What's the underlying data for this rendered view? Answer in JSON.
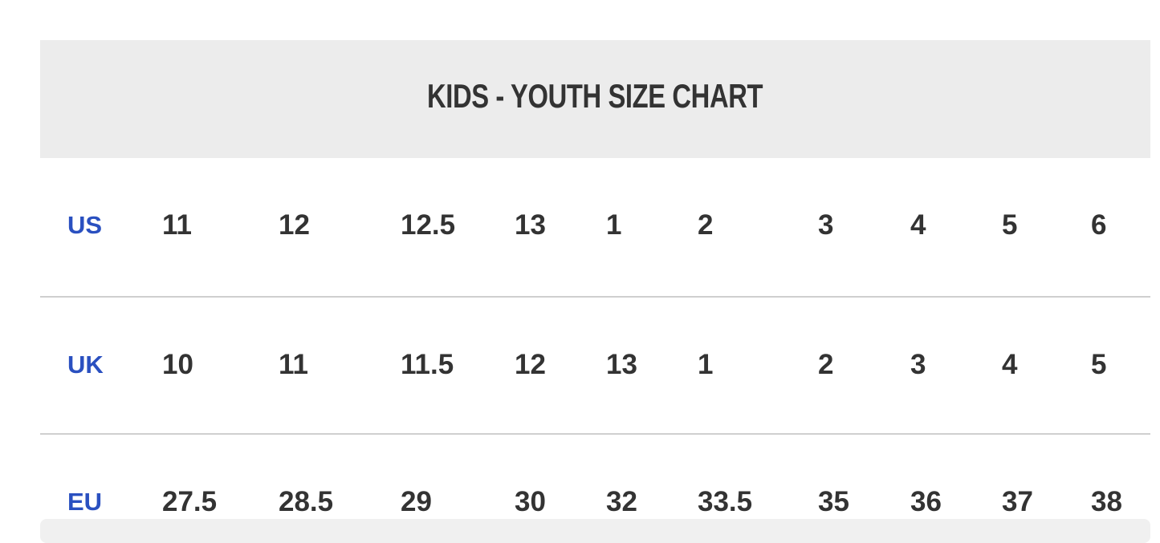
{
  "title": "KIDS - YOUTH SIZE CHART",
  "label_color": "#2a50c0",
  "rows": [
    {
      "label": "US",
      "values": [
        "11",
        "12",
        "12.5",
        "13",
        "1",
        "2",
        "3",
        "4",
        "5",
        "6"
      ]
    },
    {
      "label": "UK",
      "values": [
        "10",
        "11",
        "11.5",
        "12",
        "13",
        "1",
        "2",
        "3",
        "4",
        "5"
      ]
    },
    {
      "label": "EU",
      "values": [
        "27.5",
        "28.5",
        "29",
        "30",
        "32",
        "33.5",
        "35",
        "36",
        "37",
        "38"
      ]
    }
  ]
}
